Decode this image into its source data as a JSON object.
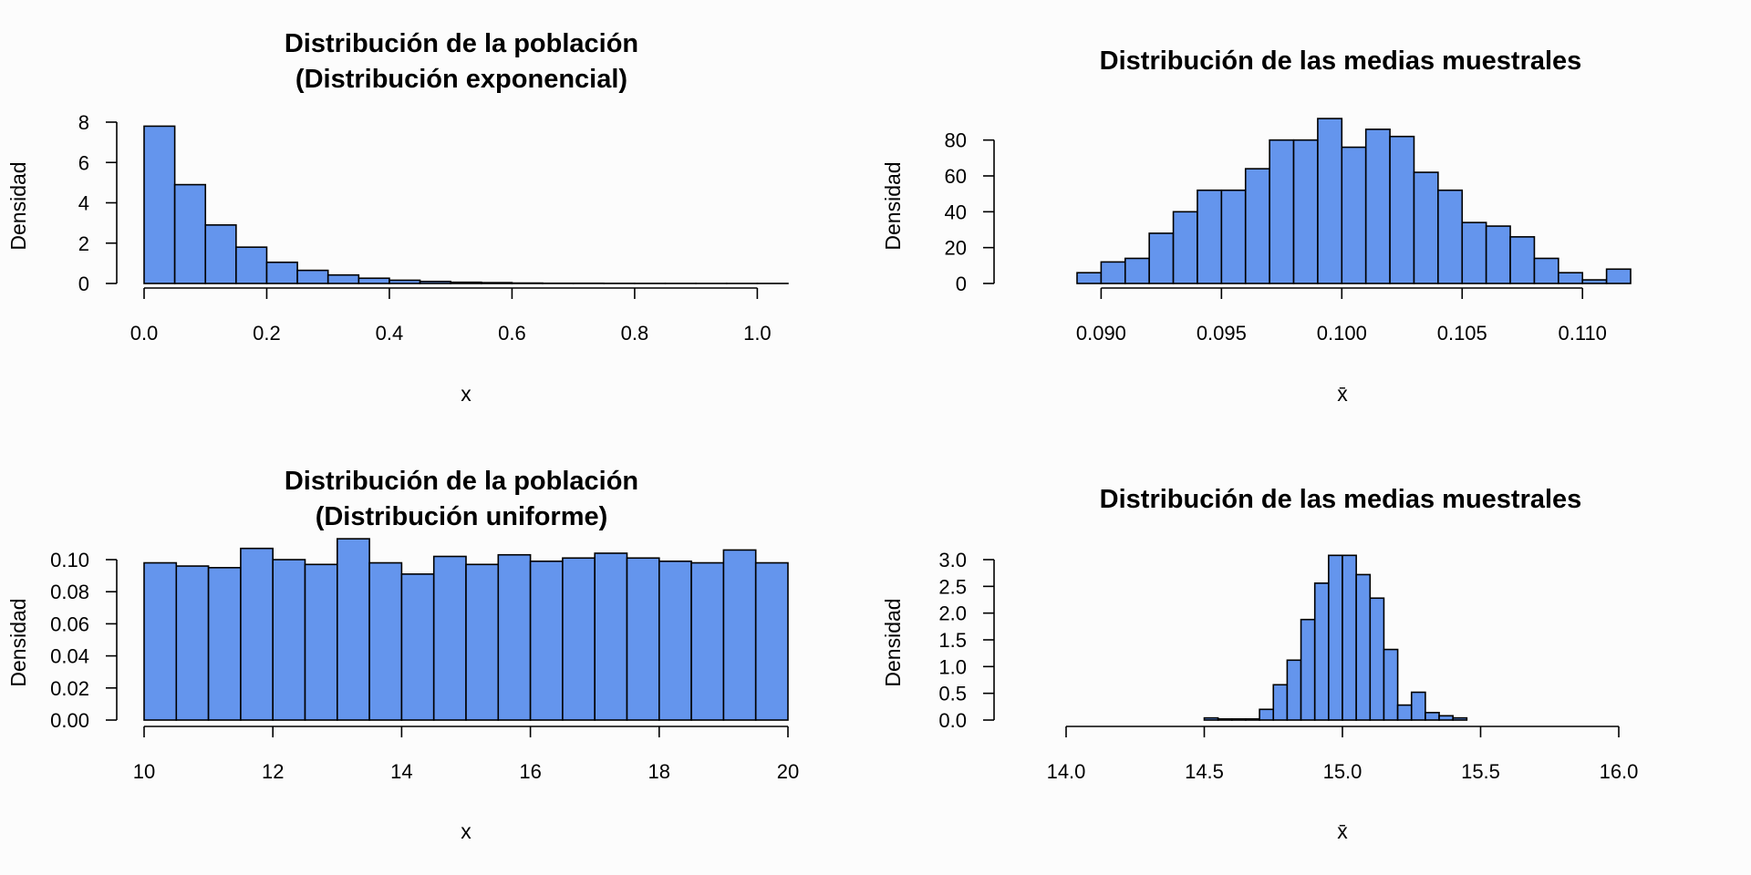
{
  "chart_data": [
    {
      "type": "bar",
      "title": [
        "Distribución de la población",
        "(Distribución exponencial)"
      ],
      "xlabel": "x",
      "ylabel": "Densidad",
      "xlim": [
        0,
        1.05
      ],
      "ylim": [
        0,
        8
      ],
      "xticks": [
        0.0,
        0.2,
        0.4,
        0.6,
        0.8,
        1.0
      ],
      "xtick_labels": [
        "0.0",
        "0.2",
        "0.4",
        "0.6",
        "0.8",
        "1.0"
      ],
      "yticks": [
        0,
        2,
        4,
        6,
        8
      ],
      "ytick_labels": [
        "0",
        "2",
        "4",
        "6",
        "8"
      ],
      "bin_start": 0,
      "bin_width": 0.05,
      "values": [
        7.8,
        4.9,
        2.9,
        1.8,
        1.05,
        0.65,
        0.42,
        0.26,
        0.16,
        0.1,
        0.06,
        0.04,
        0.02,
        0.01,
        0.01,
        0.005,
        0.003,
        0.002,
        0.001,
        0.001,
        0.001
      ],
      "grid": false
    },
    {
      "type": "bar",
      "title": [
        "Distribución de las medias muestrales"
      ],
      "xlabel": "x̄",
      "ylabel": "Densidad",
      "xlim": [
        0.089,
        0.112
      ],
      "ylim": [
        0,
        90
      ],
      "xticks": [
        0.09,
        0.095,
        0.1,
        0.105,
        0.11
      ],
      "xtick_labels": [
        "0.090",
        "0.095",
        "0.100",
        "0.105",
        "0.110"
      ],
      "yticks": [
        0,
        20,
        40,
        60,
        80
      ],
      "ytick_labels": [
        "0",
        "20",
        "40",
        "60",
        "80"
      ],
      "bin_start": 0.089,
      "bin_width": 0.001,
      "values": [
        6,
        12,
        14,
        28,
        40,
        52,
        52,
        64,
        80,
        80,
        92,
        76,
        86,
        82,
        62,
        52,
        34,
        32,
        26,
        14,
        6,
        2,
        8
      ],
      "grid": false
    },
    {
      "type": "bar",
      "title": [
        "Distribución de la población",
        "(Distribución uniforme)"
      ],
      "xlabel": "x",
      "ylabel": "Densidad",
      "xlim": [
        10,
        20
      ],
      "ylim": [
        0,
        0.1
      ],
      "xticks": [
        10,
        12,
        14,
        16,
        18,
        20
      ],
      "xtick_labels": [
        "10",
        "12",
        "14",
        "16",
        "18",
        "20"
      ],
      "yticks": [
        0,
        0.02,
        0.04,
        0.06,
        0.08,
        0.1
      ],
      "ytick_labels": [
        "0.00",
        "0.02",
        "0.04",
        "0.06",
        "0.08",
        "0.10"
      ],
      "bin_start": 10,
      "bin_width": 0.5,
      "values": [
        0.098,
        0.096,
        0.095,
        0.107,
        0.1,
        0.097,
        0.113,
        0.098,
        0.091,
        0.102,
        0.097,
        0.103,
        0.099,
        0.101,
        0.104,
        0.101,
        0.099,
        0.098,
        0.106,
        0.098
      ],
      "grid": false
    },
    {
      "type": "bar",
      "title": [
        "Distribución de las medias muestrales"
      ],
      "xlabel": "x̄",
      "ylabel": "Densidad",
      "xlim": [
        14,
        16
      ],
      "ylim": [
        0,
        3
      ],
      "xticks": [
        14.0,
        14.5,
        15.0,
        15.5,
        16.0
      ],
      "xtick_labels": [
        "14.0",
        "14.5",
        "15.0",
        "15.5",
        "16.0"
      ],
      "yticks": [
        0,
        0.5,
        1,
        1.5,
        2,
        2.5,
        3
      ],
      "ytick_labels": [
        "0.0",
        "0.5",
        "1.0",
        "1.5",
        "2.0",
        "2.5",
        "3.0"
      ],
      "bin_start": 14.5,
      "bin_width": 0.05,
      "values": [
        0.04,
        0.02,
        0.02,
        0.02,
        0.2,
        0.66,
        1.12,
        1.88,
        2.56,
        3.08,
        3.08,
        2.72,
        2.28,
        1.32,
        0.28,
        0.52,
        0.14,
        0.08,
        0.04
      ],
      "grid": false
    }
  ]
}
